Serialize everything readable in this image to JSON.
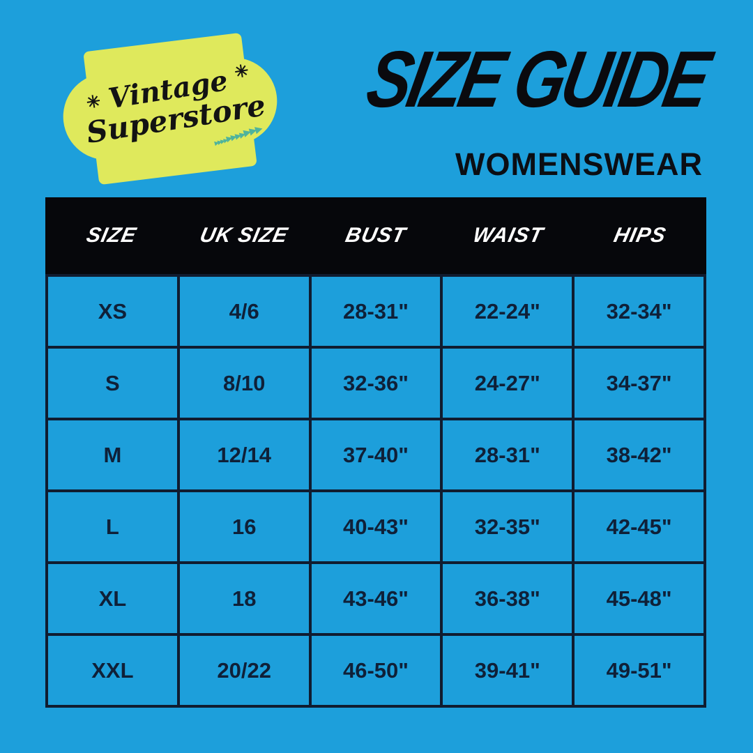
{
  "colors": {
    "background": "#1D9FDB",
    "badge": "#DFE95C",
    "badge_text": "#131313",
    "arrow_teal": "#4FB39C",
    "header_bar": "#06070B",
    "header_text": "#FFFFFF",
    "grid_border": "#101C30",
    "cell_text": "#0F2038",
    "title_text": "#0A0A0E"
  },
  "logo": {
    "line1": "Vintage",
    "line2": "Superstore",
    "sparkle": "✳",
    "arrows_small": "▸▸▸▸",
    "arrows_mid": "▸▸▸▸",
    "arrows_large": "▸▸▸"
  },
  "header": {
    "title": "SIZE GUIDE",
    "subtitle": "WOMENSWEAR"
  },
  "chart_data": {
    "type": "table",
    "title": "SIZE GUIDE",
    "subtitle": "WOMENSWEAR",
    "columns": [
      "SIZE",
      "UK SIZE",
      "BUST",
      "WAIST",
      "HIPS"
    ],
    "rows": [
      [
        "XS",
        "4/6",
        "28-31\"",
        "22-24\"",
        "32-34\""
      ],
      [
        "S",
        "8/10",
        "32-36\"",
        "24-27\"",
        "34-37\""
      ],
      [
        "M",
        "12/14",
        "37-40\"",
        "28-31\"",
        "38-42\""
      ],
      [
        "L",
        "16",
        "40-43\"",
        "32-35\"",
        "42-45\""
      ],
      [
        "XL",
        "18",
        "43-46\"",
        "36-38\"",
        "45-48\""
      ],
      [
        "XXL",
        "20/22",
        "46-50\"",
        "39-41\"",
        "49-51\""
      ]
    ]
  }
}
